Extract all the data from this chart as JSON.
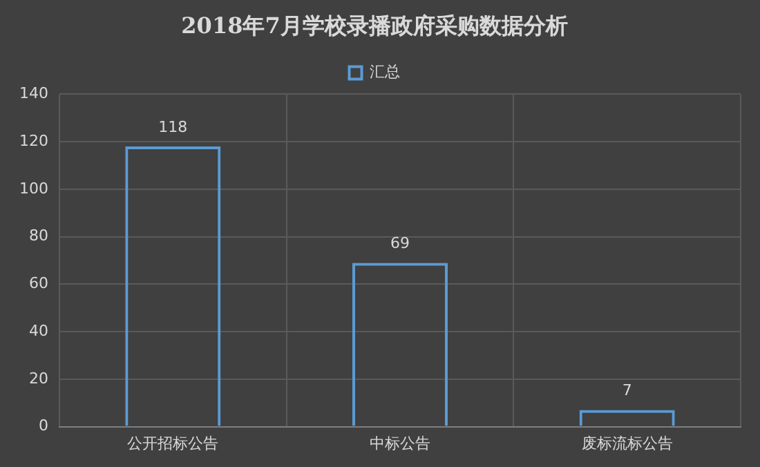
{
  "chart_data": {
    "type": "bar",
    "title": "2018年7月学校录播政府采购数据分析",
    "categories": [
      "公开招标公告",
      "中标公告",
      "废标流标公告"
    ],
    "series": [
      {
        "name": "汇总",
        "color": "#5b9bd5",
        "values": [
          118,
          69,
          7
        ]
      }
    ],
    "ylim": [
      0,
      140
    ],
    "yticks": [
      0,
      20,
      40,
      60,
      80,
      100,
      120,
      140
    ],
    "grid": true,
    "legend": "top",
    "data_labels": true
  }
}
